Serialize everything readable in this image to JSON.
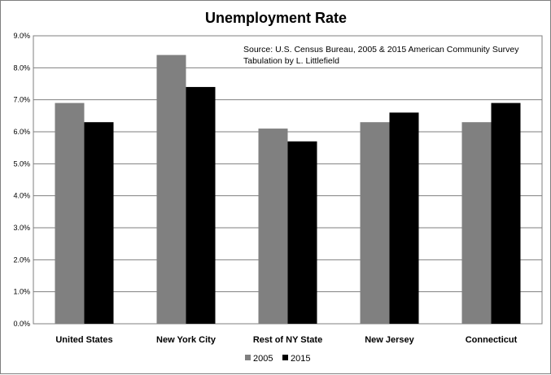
{
  "chart_data": {
    "type": "bar",
    "title": "Unemployment Rate",
    "annotation_lines": [
      "Source:  U.S. Census Bureau, 2005 & 2015 American Community Survey",
      "Tabulation by L. Littlefield"
    ],
    "categories": [
      "United States",
      "New York City",
      "Rest of NY State",
      "New Jersey",
      "Connecticut"
    ],
    "series": [
      {
        "name": "2005",
        "color": "#808080",
        "values": [
          6.9,
          8.4,
          6.1,
          6.3,
          6.3
        ]
      },
      {
        "name": "2015",
        "color": "#000000",
        "values": [
          6.3,
          7.4,
          5.7,
          6.6,
          6.9
        ]
      }
    ],
    "yticks": [
      "0.0%",
      "1.0%",
      "2.0%",
      "3.0%",
      "4.0%",
      "5.0%",
      "6.0%",
      "7.0%",
      "8.0%",
      "9.0%"
    ],
    "ylim": [
      0,
      9
    ],
    "grid": true,
    "legend_position": "bottom"
  }
}
